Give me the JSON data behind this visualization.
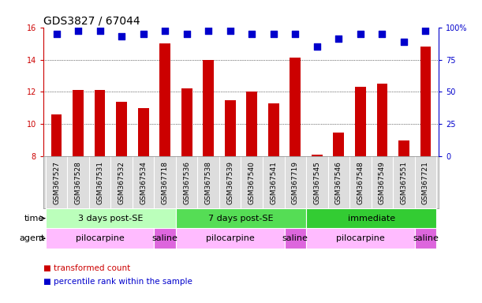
{
  "title": "GDS3827 / 67044",
  "samples": [
    "GSM367527",
    "GSM367528",
    "GSM367531",
    "GSM367532",
    "GSM367534",
    "GSM367718",
    "GSM367536",
    "GSM367538",
    "GSM367539",
    "GSM367540",
    "GSM367541",
    "GSM367719",
    "GSM367545",
    "GSM367546",
    "GSM367548",
    "GSM367549",
    "GSM367551",
    "GSM367721"
  ],
  "transformed_counts": [
    10.6,
    12.1,
    12.1,
    11.4,
    11.0,
    15.0,
    12.2,
    14.0,
    11.5,
    12.0,
    11.3,
    14.1,
    8.1,
    9.5,
    12.3,
    12.5,
    9.0,
    14.8
  ],
  "percentile_ranks": [
    95,
    97,
    97,
    93,
    95,
    97,
    95,
    97,
    97,
    95,
    95,
    95,
    85,
    91,
    95,
    95,
    89,
    97
  ],
  "ylim_left": [
    8,
    16
  ],
  "ylim_right": [
    0,
    100
  ],
  "yticks_left": [
    8,
    10,
    12,
    14,
    16
  ],
  "yticks_right": [
    0,
    25,
    50,
    75,
    100
  ],
  "bar_color": "#cc0000",
  "dot_color": "#0000cc",
  "grid_color": "#000000",
  "sample_bg_color": "#dddddd",
  "time_groups": [
    {
      "label": "3 days post-SE",
      "start": 0,
      "end": 5,
      "color": "#bbffbb"
    },
    {
      "label": "7 days post-SE",
      "start": 6,
      "end": 11,
      "color": "#55dd55"
    },
    {
      "label": "immediate",
      "start": 12,
      "end": 17,
      "color": "#33cc33"
    }
  ],
  "agent_groups": [
    {
      "label": "pilocarpine",
      "start": 0,
      "end": 4,
      "color": "#ffbbff"
    },
    {
      "label": "saline",
      "start": 5,
      "end": 5,
      "color": "#dd66dd"
    },
    {
      "label": "pilocarpine",
      "start": 6,
      "end": 10,
      "color": "#ffbbff"
    },
    {
      "label": "saline",
      "start": 11,
      "end": 11,
      "color": "#dd66dd"
    },
    {
      "label": "pilocarpine",
      "start": 12,
      "end": 16,
      "color": "#ffbbff"
    },
    {
      "label": "saline",
      "start": 17,
      "end": 17,
      "color": "#dd66dd"
    }
  ],
  "legend_bar_label": "transformed count",
  "legend_dot_label": "percentile rank within the sample",
  "time_label": "time",
  "agent_label": "agent",
  "bar_width": 0.5,
  "dot_size": 35,
  "dot_marker": "s",
  "background_color": "#ffffff",
  "axis_label_color_left": "#cc0000",
  "axis_label_color_right": "#0000cc",
  "title_fontsize": 10,
  "tick_fontsize": 7,
  "sample_fontsize": 6.5,
  "group_label_fontsize": 8,
  "legend_fontsize": 7.5
}
